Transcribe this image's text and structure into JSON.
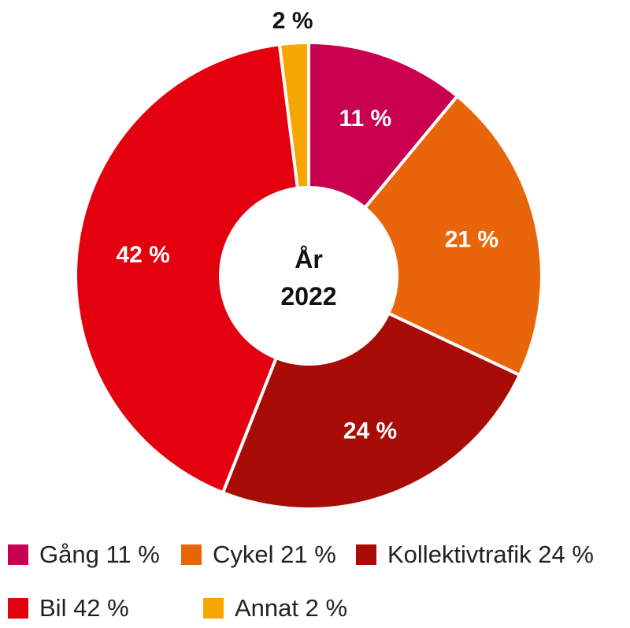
{
  "chart_data": {
    "type": "pie",
    "variant": "donut",
    "center_label": [
      "År",
      "2022"
    ],
    "slices": [
      {
        "label": "Gång",
        "value": 11,
        "value_label": "11 %",
        "legend": "Gång 11 %",
        "color": "#C8004F",
        "label_color": "#ffffff"
      },
      {
        "label": "Cykel",
        "value": 21,
        "value_label": "21 %",
        "legend": "Cykel 21 %",
        "color": "#E8650A",
        "label_color": "#ffffff"
      },
      {
        "label": "Kollektivtrafik",
        "value": 24,
        "value_label": "24 %",
        "legend": "Kollektivtrafik 24 %",
        "color": "#A80C06",
        "label_color": "#ffffff"
      },
      {
        "label": "Bil",
        "value": 42,
        "value_label": "42 %",
        "legend": "Bil 42 %",
        "color": "#E3000F",
        "label_color": "#ffffff"
      },
      {
        "label": "Annat",
        "value": 2,
        "value_label": "2 %",
        "legend": "Annat 2 %",
        "color": "#F5A600",
        "label_color": "#111111"
      }
    ]
  }
}
